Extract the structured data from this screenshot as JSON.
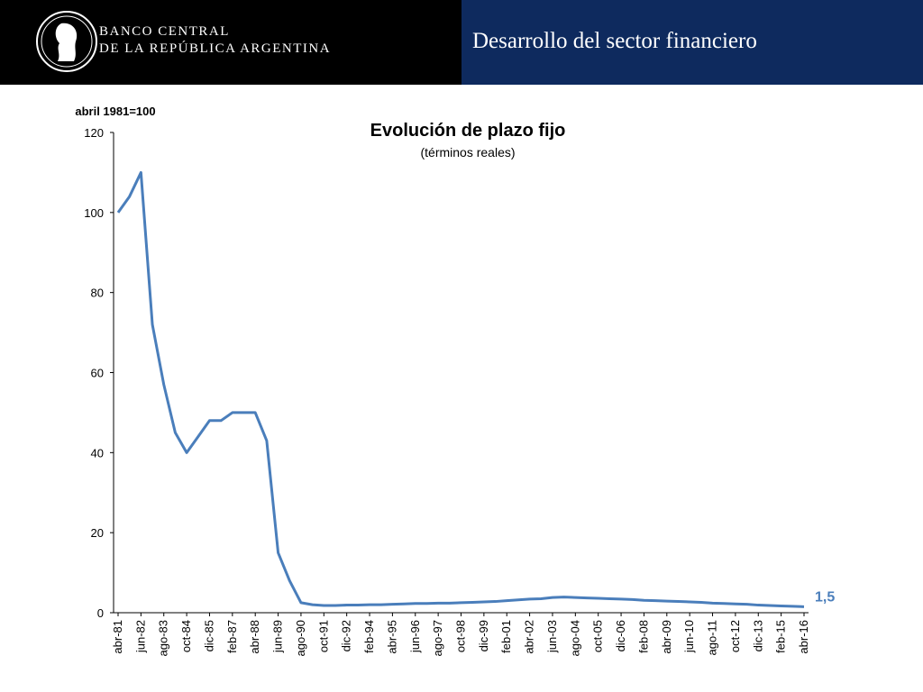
{
  "header": {
    "bank_line1": "BANCO CENTRAL",
    "bank_line2": "DE LA REPÚBLICA ARGENTINA",
    "section": "Desarrollo del sector financiero"
  },
  "chart_data": {
    "type": "line",
    "title": "Evolución de plazo fijo",
    "subtitle": "(términos reales)",
    "y_label": "abril 1981=100",
    "categories": [
      "abr-81",
      null,
      "jun-82",
      null,
      "ago-83",
      null,
      "oct-84",
      null,
      "dic-85",
      null,
      "feb-87",
      null,
      "abr-88",
      null,
      "jun-89",
      null,
      "ago-90",
      null,
      "oct-91",
      null,
      "dic-92",
      null,
      "feb-94",
      null,
      "abr-95",
      null,
      "jun-96",
      null,
      "ago-97",
      null,
      "oct-98",
      null,
      "dic-99",
      null,
      "feb-01",
      null,
      "abr-02",
      null,
      "jun-03",
      null,
      "ago-04",
      null,
      "oct-05",
      null,
      "dic-06",
      null,
      "feb-08",
      null,
      "abr-09",
      null,
      "jun-10",
      null,
      "ago-11",
      null,
      "oct-12",
      null,
      "dic-13",
      null,
      "feb-15",
      null,
      "abr-16"
    ],
    "series": [
      {
        "name": "Plazo fijo",
        "color": "#4a7ebb",
        "values": [
          100,
          104,
          110,
          72,
          57,
          45,
          40,
          44,
          48,
          48,
          50,
          50,
          50,
          43,
          15,
          8,
          2.5,
          2,
          1.8,
          1.8,
          1.9,
          1.9,
          2.0,
          2.0,
          2.1,
          2.2,
          2.3,
          2.3,
          2.4,
          2.4,
          2.5,
          2.6,
          2.7,
          2.8,
          3.0,
          3.2,
          3.4,
          3.5,
          3.8,
          3.9,
          3.8,
          3.7,
          3.6,
          3.5,
          3.4,
          3.3,
          3.1,
          3.0,
          2.9,
          2.8,
          2.7,
          2.6,
          2.4,
          2.3,
          2.2,
          2.1,
          1.9,
          1.8,
          1.7,
          1.6,
          1.5
        ],
        "value_labels": [
          null,
          null,
          null,
          null,
          null,
          null,
          null,
          null,
          null,
          null,
          null,
          null,
          null,
          null,
          null,
          null,
          null,
          null,
          null,
          null,
          null,
          null,
          null,
          null,
          null,
          null,
          null,
          null,
          null,
          null,
          null,
          null,
          null,
          null,
          null,
          null,
          null,
          null,
          null,
          null,
          null,
          null,
          null,
          null,
          null,
          null,
          null,
          null,
          null,
          null,
          null,
          null,
          null,
          null,
          null,
          null,
          null,
          null,
          null,
          null,
          "1,5"
        ]
      }
    ],
    "ylim": [
      0,
      120
    ],
    "yticks": [
      0,
      20,
      40,
      60,
      80,
      100,
      120
    ],
    "grid": false
  }
}
